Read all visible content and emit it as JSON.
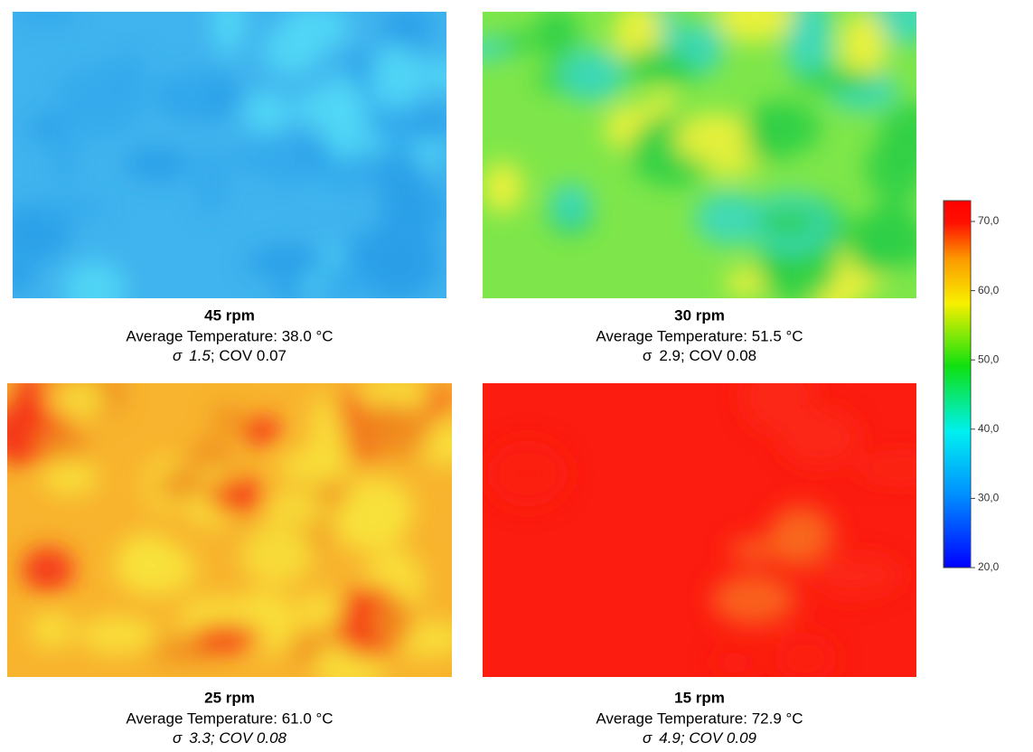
{
  "panels": [
    {
      "label": "45 rpm",
      "temperature": "Average Temperature: 38.0 °C",
      "stats": [
        "σ",
        "1.5",
        "; COV 0.07"
      ]
    },
    {
      "label": "30 rpm",
      "temperature": "Average Temperature: 51.5 °C",
      "stats": [
        "σ",
        "2.9",
        "; COV 0.08"
      ]
    },
    {
      "label": "25 rpm",
      "temperature": "Average Temperature: 61.0 °C",
      "stats": [
        "σ",
        "3.3",
        "; COV 0.08"
      ]
    },
    {
      "label": "15 rpm",
      "temperature": "Average Temperature: 72.9 °C",
      "stats": [
        "σ",
        "4.9",
        "; COV 0.09"
      ]
    }
  ],
  "colorbar": {
    "range": [
      20,
      73
    ],
    "ticks": [
      {
        "value": 20,
        "label": "20,0"
      },
      {
        "value": 30,
        "label": "30,0"
      },
      {
        "value": 40,
        "label": "40,0"
      },
      {
        "value": 50,
        "label": "50,0"
      },
      {
        "value": 60,
        "label": "60,0"
      },
      {
        "value": 70,
        "label": "70,0"
      }
    ]
  }
}
